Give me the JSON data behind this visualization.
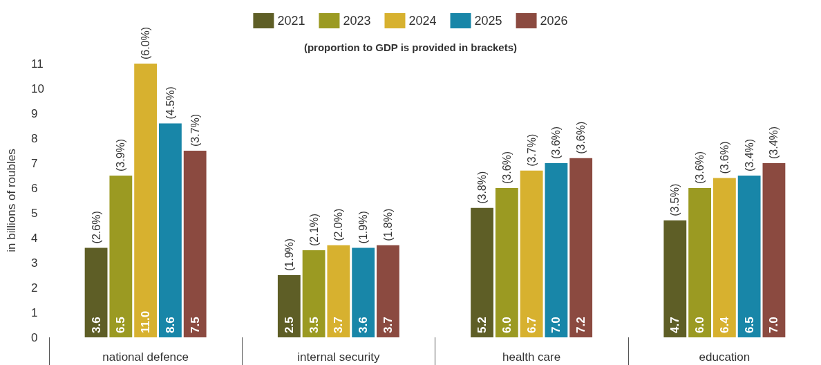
{
  "chart_data": {
    "type": "bar",
    "subtitle": "(proportion to GDP is provided in brackets)",
    "ylabel": "in billions of roubles",
    "categories": [
      "national defence",
      "internal security",
      "health care",
      "education"
    ],
    "series": [
      {
        "name": "2021",
        "color": "#5e5e26",
        "values": [
          3.6,
          2.5,
          5.2,
          4.7
        ],
        "value_labels": [
          "3.6",
          "2.5",
          "5.2",
          "4.7"
        ]
      },
      {
        "name": "2023",
        "color": "#9b9a22",
        "values": [
          6.5,
          3.5,
          6.0,
          6.0
        ],
        "value_labels": [
          "6.5",
          "3.5",
          "6.0",
          "6.0"
        ]
      },
      {
        "name": "2024",
        "color": "#d7b12f",
        "values": [
          11.0,
          3.7,
          6.7,
          6.4
        ],
        "value_labels": [
          "11.0",
          "3.7",
          "6.7",
          "6.4"
        ]
      },
      {
        "name": "2025",
        "color": "#1886a8",
        "values": [
          8.6,
          3.6,
          7.0,
          6.5
        ],
        "value_labels": [
          "8.6",
          "3.6",
          "7.0",
          "6.5"
        ]
      },
      {
        "name": "2026",
        "color": "#8b4a40",
        "values": [
          7.5,
          3.7,
          7.2,
          7.0
        ],
        "value_labels": [
          "7.5",
          "3.7",
          "7.2",
          "7.0"
        ]
      }
    ],
    "annotations": [
      "(2.6%)",
      "(1.9%)",
      "(3.8%)",
      "(3.5%)",
      "(3.9%)",
      "(2.1%)",
      "(3.6%)",
      "(3.6%)",
      "(6.0%)",
      "(2.0%)",
      "(3.7%)",
      "(3.6%)",
      "(4.5%)",
      "(1.9%)",
      "(3.6%)",
      "(3.4%)",
      "(3.7%)",
      "(1.8%)",
      "(3.6%)",
      "(3.4%)"
    ],
    "ylim": [
      0,
      11
    ],
    "yticks": [
      0,
      1,
      2,
      3,
      4,
      5,
      6,
      7,
      8,
      9,
      10,
      11
    ],
    "grid": false,
    "legend": "top"
  }
}
